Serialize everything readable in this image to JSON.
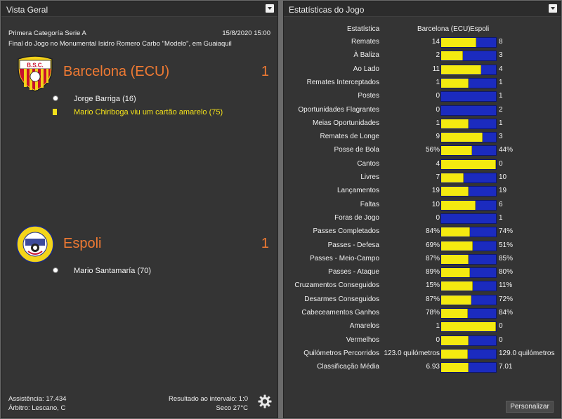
{
  "overview": {
    "title": "Vista Geral",
    "competition": "Primera Categoría Serie A",
    "datetime": "15/8/2020 15:00",
    "venue": "Final do Jogo no Monumental Isidro Romero Carbo \"Modelo\", em Guaiaquil",
    "home": {
      "name": "Barcelona (ECU)",
      "score": "1",
      "events": [
        {
          "type": "goal",
          "text": "Jorge Barriga (16)"
        },
        {
          "type": "yellow-card",
          "text": "Mario Chiriboga viu um cartão amarelo (75)"
        }
      ]
    },
    "away": {
      "name": "Espoli",
      "score": "1",
      "events": [
        {
          "type": "goal",
          "text": "Mario Santamaría (70)"
        }
      ]
    },
    "footer": {
      "attendance": "Assistência: 17.434",
      "referee": "Árbitro: Lescano, C",
      "halftime": "Resultado ao intervalo: 1:0",
      "weather": "Seco 27°C"
    },
    "colors": {
      "accent": "#f07a33",
      "yellow_card": "#f3e11b"
    }
  },
  "stats": {
    "title": "Estatísticas do Jogo",
    "col_stat": "Estatística",
    "col_home": "Barcelona (ECU)",
    "col_away": "Espoli",
    "customize_label": "Personalizar",
    "colors": {
      "home_bar": "#f4ea10",
      "away_bar": "#1b2bbf"
    },
    "rows": [
      {
        "label": "Remates",
        "home": "14",
        "away": "8",
        "share": 0.636
      },
      {
        "label": "À Baliza",
        "home": "2",
        "away": "3",
        "share": 0.4
      },
      {
        "label": "Ao Lado",
        "home": "11",
        "away": "4",
        "share": 0.733
      },
      {
        "label": "Remates Interceptados",
        "home": "1",
        "away": "1",
        "share": 0.5
      },
      {
        "label": "Postes",
        "home": "0",
        "away": "1",
        "share": 0.0
      },
      {
        "label": "Oportunidades Flagrantes",
        "home": "0",
        "away": "2",
        "share": 0.0
      },
      {
        "label": "Meias Oportunidades",
        "home": "1",
        "away": "1",
        "share": 0.5
      },
      {
        "label": "Remates de Longe",
        "home": "9",
        "away": "3",
        "share": 0.75
      },
      {
        "label": "Posse de Bola",
        "home": "56%",
        "away": "44%",
        "share": 0.56
      },
      {
        "label": "Cantos",
        "home": "4",
        "away": "0",
        "share": 1.0
      },
      {
        "label": "Livres",
        "home": "7",
        "away": "10",
        "share": 0.412
      },
      {
        "label": "Lançamentos",
        "home": "19",
        "away": "19",
        "share": 0.5
      },
      {
        "label": "Faltas",
        "home": "10",
        "away": "6",
        "share": 0.625
      },
      {
        "label": "Foras de Jogo",
        "home": "0",
        "away": "1",
        "share": 0.0
      },
      {
        "label": "Passes Completados",
        "home": "84%",
        "away": "74%",
        "share": 0.532
      },
      {
        "label": "Passes - Defesa",
        "home": "69%",
        "away": "51%",
        "share": 0.575
      },
      {
        "label": "Passes - Meio-Campo",
        "home": "87%",
        "away": "85%",
        "share": 0.506
      },
      {
        "label": "Passes - Ataque",
        "home": "89%",
        "away": "80%",
        "share": 0.527
      },
      {
        "label": "Cruzamentos Conseguidos",
        "home": "15%",
        "away": "11%",
        "share": 0.577
      },
      {
        "label": "Desarmes Conseguidos",
        "home": "87%",
        "away": "72%",
        "share": 0.547
      },
      {
        "label": "Cabeceamentos Ganhos",
        "home": "78%",
        "away": "84%",
        "share": 0.481
      },
      {
        "label": "Amarelos",
        "home": "1",
        "away": "0",
        "share": 1.0
      },
      {
        "label": "Vermelhos",
        "home": "0",
        "away": "0",
        "share": 0.5
      },
      {
        "label": "Quilómetros Percorridos",
        "home": "123.0 quilómetros",
        "away": "129.0 quilómetros",
        "share": 0.488
      },
      {
        "label": "Classificação Média",
        "home": "6.93",
        "away": "7.01",
        "share": 0.497
      }
    ]
  }
}
